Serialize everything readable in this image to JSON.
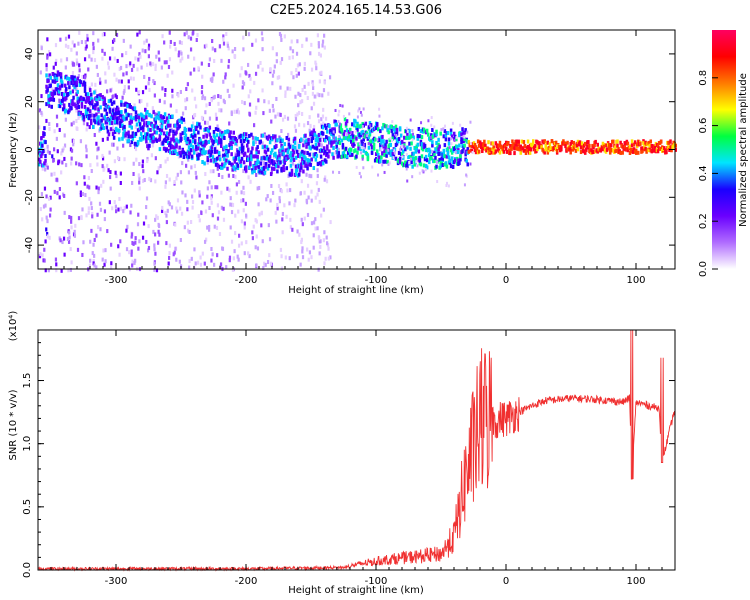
{
  "title": "C2E5.2024.165.14.53.G06",
  "chart_data": [
    {
      "type": "heatmap",
      "name": "spectrogram",
      "xlabel": "Height of straight line (km)",
      "ylabel": "Frequency (Hz)",
      "xlim": [
        -360,
        130
      ],
      "ylim": [
        -50,
        50
      ],
      "xticks": [
        -300,
        -200,
        -100,
        0,
        100
      ],
      "yticks": [
        -40,
        -20,
        0,
        20,
        40
      ],
      "colorbar": {
        "label": "Normalized spectral amplitude",
        "range": [
          0,
          1
        ],
        "ticks": [
          "0.0",
          "0.2",
          "0.4",
          "0.6",
          "0.8"
        ],
        "tick_values": [
          0.0,
          0.2,
          0.4,
          0.6,
          0.8
        ],
        "colormap": [
          "#ffffff",
          "#b06cff",
          "#6a00ff",
          "#1a00ff",
          "#00e5ff",
          "#00ff40",
          "#ffff00",
          "#ff7a00",
          "#ff0000",
          "#ff0060"
        ]
      },
      "ridge": [
        {
          "x": -355,
          "f": 26
        },
        {
          "x": -330,
          "f": 22
        },
        {
          "x": -310,
          "f": 14
        },
        {
          "x": -280,
          "f": 9
        },
        {
          "x": -250,
          "f": 5
        },
        {
          "x": -220,
          "f": 0
        },
        {
          "x": -190,
          "f": -2
        },
        {
          "x": -160,
          "f": -3
        },
        {
          "x": -130,
          "f": 5
        },
        {
          "x": -110,
          "f": 4
        },
        {
          "x": -80,
          "f": 1
        },
        {
          "x": -50,
          "f": 0
        },
        {
          "x": -25,
          "f": 1
        },
        {
          "x": 0,
          "f": 1
        },
        {
          "x": 50,
          "f": 1
        },
        {
          "x": 90,
          "f": 1
        },
        {
          "x": 128,
          "f": 1
        }
      ],
      "noise_cutoff_x": -135
    },
    {
      "type": "line",
      "name": "snr",
      "xlabel": "Height of straight line (km)",
      "ylabel": "SNR (10 * v/v)",
      "scale_label": "(x10⁴)",
      "xlim": [
        -360,
        130
      ],
      "ylim": [
        0,
        1.9
      ],
      "xticks": [
        -300,
        -200,
        -100,
        0,
        100
      ],
      "yticks": [
        0.0,
        0.5,
        1.0,
        1.5
      ],
      "yticklabels": [
        "0.0",
        "0.5",
        "1.0",
        "1.5"
      ],
      "color": "#f03030",
      "x": [
        -360,
        -200,
        -125,
        -110,
        -90,
        -70,
        -50,
        -40,
        -30,
        -20,
        -10,
        0,
        10,
        20,
        30,
        50,
        70,
        90,
        95,
        97,
        100,
        110,
        118,
        120,
        130
      ],
      "y": [
        0.01,
        0.01,
        0.02,
        0.05,
        0.08,
        0.1,
        0.12,
        0.25,
        0.75,
        1.1,
        1.18,
        1.2,
        1.25,
        1.3,
        1.34,
        1.36,
        1.35,
        1.33,
        1.36,
        0.75,
        1.33,
        1.3,
        1.28,
        0.85,
        1.28
      ]
    }
  ]
}
